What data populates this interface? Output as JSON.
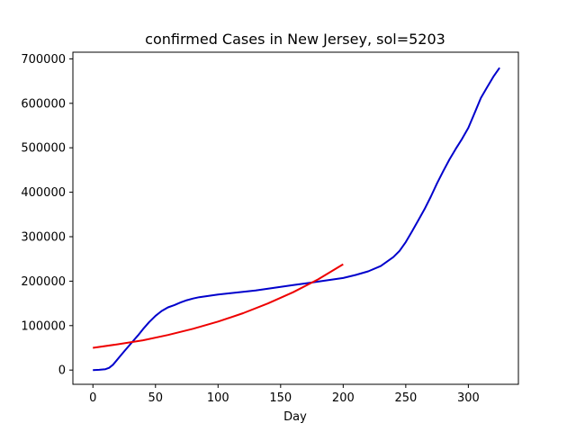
{
  "chart_data": {
    "type": "line",
    "title": "confirmed Cases in New Jersey, sol=5203",
    "xlabel": "Day",
    "ylabel": "",
    "xlim": [
      -16,
      340
    ],
    "ylim": [
      -32000,
      715000
    ],
    "xticks": [
      0,
      50,
      100,
      150,
      200,
      250,
      300
    ],
    "yticks": [
      0,
      100000,
      200000,
      300000,
      400000,
      500000,
      600000,
      700000
    ],
    "grid": false,
    "legend": "none",
    "series": [
      {
        "color": "#0000cc",
        "x": [
          0,
          5,
          10,
          13,
          16,
          19,
          22,
          25,
          28,
          32,
          36,
          40,
          45,
          50,
          55,
          60,
          65,
          70,
          75,
          80,
          85,
          90,
          95,
          100,
          110,
          120,
          130,
          140,
          150,
          160,
          170,
          180,
          190,
          200,
          210,
          220,
          230,
          240,
          245,
          250,
          255,
          260,
          265,
          270,
          275,
          280,
          285,
          290,
          295,
          300,
          305,
          310,
          315,
          320,
          325
        ],
        "y": [
          0,
          500,
          2000,
          5000,
          12000,
          22000,
          32000,
          42000,
          52000,
          65000,
          78000,
          92000,
          108000,
          122000,
          133000,
          141000,
          146000,
          152000,
          157000,
          161000,
          164000,
          166000,
          168000,
          170000,
          173000,
          176000,
          179000,
          183000,
          187000,
          191000,
          195000,
          199000,
          203000,
          207000,
          214000,
          222000,
          234000,
          254000,
          268000,
          288000,
          312000,
          337000,
          362000,
          390000,
          420000,
          448000,
          474000,
          498000,
          520000,
          545000,
          578000,
          612000,
          636000,
          660000,
          680000
        ]
      },
      {
        "color": "#ee0000",
        "x": [
          0,
          20,
          40,
          60,
          80,
          100,
          120,
          140,
          160,
          180,
          200
        ],
        "y": [
          50000,
          58000,
          67000,
          79000,
          93000,
          109000,
          128000,
          150000,
          175000,
          204000,
          238000
        ]
      }
    ]
  }
}
